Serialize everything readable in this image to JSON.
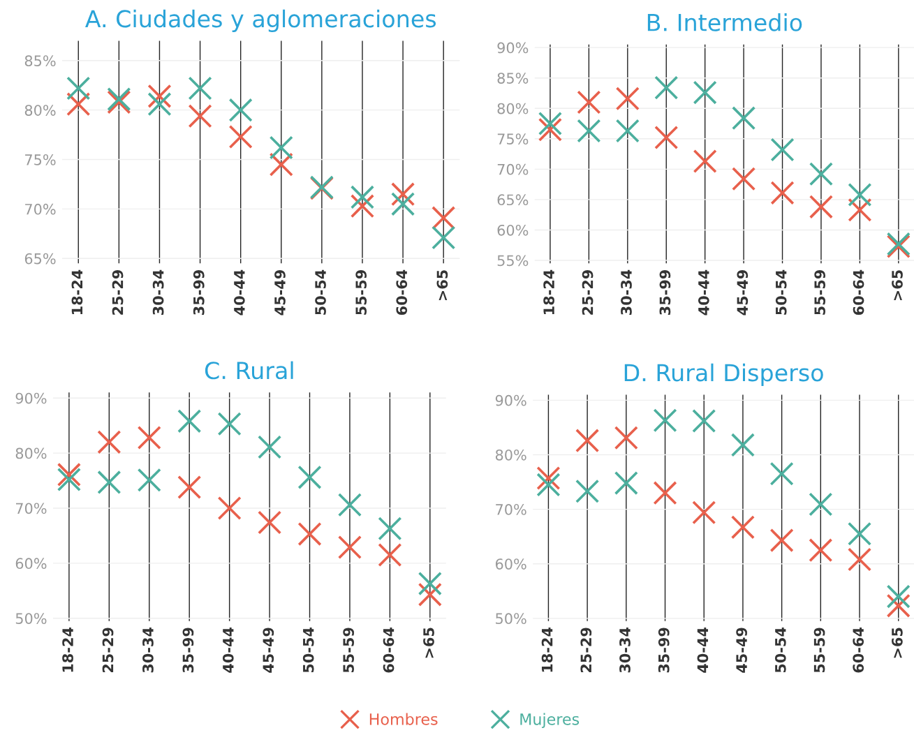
{
  "chart_data": [
    {
      "type": "scatter",
      "title": "A. Ciudades y aglomeraciones",
      "categories": [
        "18-24",
        "25-29",
        "30-34",
        "35-99",
        "40-44",
        "45-49",
        "50-54",
        "55-59",
        "60-64",
        ">65"
      ],
      "series": [
        {
          "name": "Hombres",
          "color": "#e8604c",
          "marker": "cross",
          "values": [
            80.6,
            80.8,
            81.4,
            79.4,
            77.3,
            74.5,
            72.1,
            70.3,
            71.5,
            69.1
          ]
        },
        {
          "name": "Mujeres",
          "color": "#4caf9e",
          "marker": "cross",
          "values": [
            82.2,
            81.1,
            80.6,
            82.2,
            80.0,
            76.2,
            72.2,
            71.2,
            70.5,
            67.1
          ]
        }
      ],
      "ylim": [
        64.5,
        87
      ],
      "yticks": [
        {
          "value": 65,
          "label": "65%"
        },
        {
          "value": 70,
          "label": "70%"
        },
        {
          "value": 75,
          "label": "75%"
        },
        {
          "value": 80,
          "label": "80%"
        },
        {
          "value": 85,
          "label": "85%"
        }
      ],
      "grid": true,
      "legend": "bottom"
    },
    {
      "type": "scatter",
      "title": "B. Intermedio",
      "categories": [
        "18-24",
        "25-29",
        "30-34",
        "35-99",
        "40-44",
        "45-49",
        "50-54",
        "55-59",
        "60-64",
        ">65"
      ],
      "series": [
        {
          "color": "#e8604c",
          "marker": "cross",
          "values": [
            76.5,
            81.0,
            81.6,
            75.2,
            71.3,
            68.4,
            66.1,
            63.8,
            63.3,
            57.3
          ]
        },
        {
          "color": "#4caf9e",
          "marker": "cross",
          "values": [
            77.5,
            76.3,
            76.3,
            83.4,
            82.6,
            78.4,
            73.2,
            69.2,
            65.8,
            57.7
          ]
        }
      ],
      "ylim": [
        54.5,
        90.5
      ],
      "yticks": [
        {
          "value": 55,
          "label": "55%"
        },
        {
          "value": 60,
          "label": "60%"
        },
        {
          "value": 65,
          "label": "65%"
        },
        {
          "value": 70,
          "label": "70%"
        },
        {
          "value": 75,
          "label": "75%"
        },
        {
          "value": 80,
          "label": "80%"
        },
        {
          "value": 85,
          "label": "85%"
        },
        {
          "value": 90,
          "label": "90%"
        }
      ],
      "grid": true,
      "legend": false
    },
    {
      "type": "scatter",
      "title": "C. Rural",
      "categories": [
        "18-24",
        "25-29",
        "30-34",
        "35-99",
        "40-44",
        "45-49",
        "50-54",
        "55-59",
        "60-64",
        ">65"
      ],
      "series": [
        {
          "color": "#e8604c",
          "marker": "cross",
          "values": [
            76.1,
            82.0,
            82.8,
            73.8,
            70.0,
            67.4,
            65.3,
            62.9,
            61.5,
            54.3
          ]
        },
        {
          "color": "#4caf9e",
          "marker": "cross",
          "values": [
            75.2,
            74.7,
            75.1,
            85.8,
            85.3,
            81.1,
            75.6,
            70.6,
            66.3,
            56.3
          ]
        }
      ],
      "ylim": [
        49.5,
        91
      ],
      "yticks": [
        {
          "value": 50,
          "label": "50%"
        },
        {
          "value": 60,
          "label": "60%"
        },
        {
          "value": 70,
          "label": "70%"
        },
        {
          "value": 80,
          "label": "80%"
        },
        {
          "value": 90,
          "label": "90%"
        }
      ],
      "grid": true,
      "legend": false
    },
    {
      "type": "scatter",
      "title": "D. Rural Disperso",
      "categories": [
        "18-24",
        "25-29",
        "30-34",
        "35-99",
        "40-44",
        "45-49",
        "50-54",
        "55-59",
        "60-64",
        ">65"
      ],
      "series": [
        {
          "color": "#e8604c",
          "marker": "cross",
          "values": [
            75.7,
            82.6,
            83.1,
            73.0,
            69.4,
            66.7,
            64.3,
            62.5,
            60.8,
            52.3
          ]
        },
        {
          "color": "#4caf9e",
          "marker": "cross",
          "values": [
            74.5,
            73.3,
            74.8,
            86.3,
            86.2,
            81.8,
            76.5,
            70.9,
            65.5,
            54.0
          ]
        }
      ],
      "ylim": [
        49.5,
        91
      ],
      "yticks": [
        {
          "value": 50,
          "label": "50%"
        },
        {
          "value": 60,
          "label": "60%"
        },
        {
          "value": 70,
          "label": "70%"
        },
        {
          "value": 80,
          "label": "80%"
        },
        {
          "value": 90,
          "label": "90%"
        }
      ],
      "grid": true,
      "legend": false
    }
  ]
}
